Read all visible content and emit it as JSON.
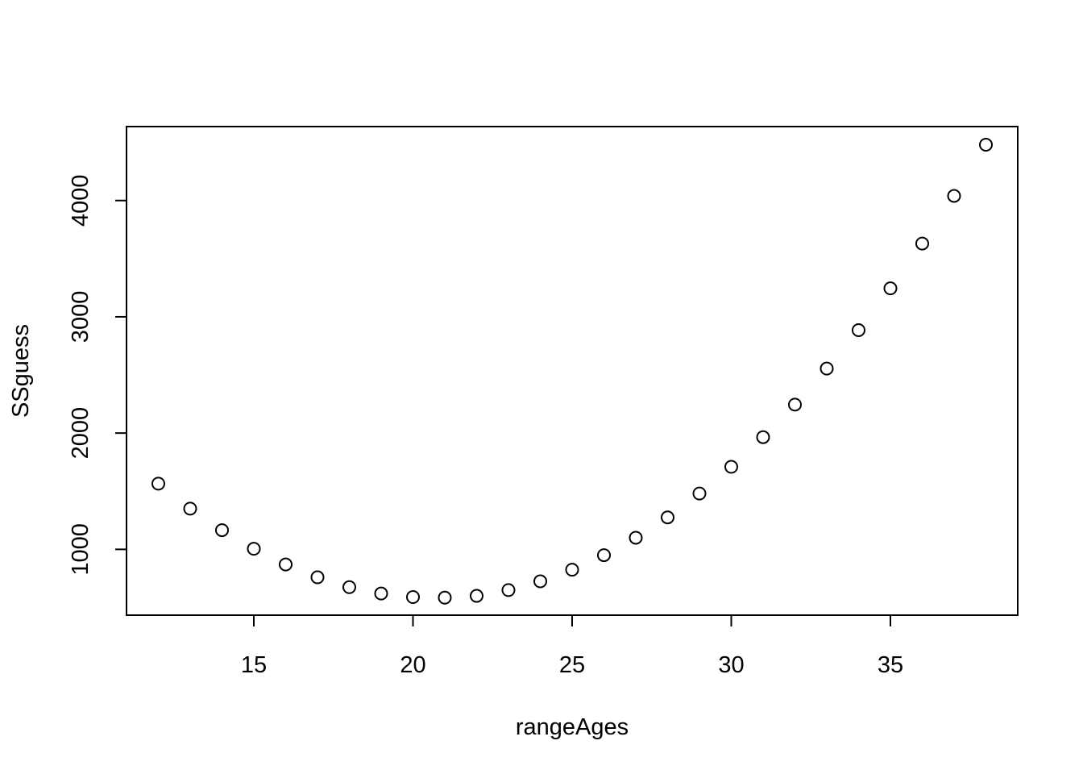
{
  "chart_data": {
    "type": "scatter",
    "title": "",
    "xlabel": "rangeAges",
    "ylabel": "SSguess",
    "x": [
      12,
      13,
      14,
      15,
      16,
      17,
      18,
      19,
      20,
      21,
      22,
      23,
      24,
      25,
      26,
      27,
      28,
      29,
      30,
      31,
      32,
      33,
      34,
      35,
      36,
      37,
      38
    ],
    "y": [
      1565,
      1350,
      1165,
      1005,
      870,
      760,
      675,
      620,
      590,
      585,
      600,
      650,
      725,
      825,
      950,
      1100,
      1275,
      1480,
      1710,
      1965,
      2245,
      2555,
      2885,
      3245,
      3630,
      4040,
      4480
    ],
    "xlim": [
      11.0,
      39.0
    ],
    "ylim": [
      434,
      4636
    ],
    "xticks": [
      15,
      20,
      25,
      30,
      35
    ],
    "xtick_labels": [
      "15",
      "20",
      "25",
      "30",
      "35"
    ],
    "yticks": [
      1000,
      2000,
      3000,
      4000
    ],
    "ytick_labels": [
      "1000",
      "2000",
      "3000",
      "4000"
    ],
    "marker": "open-circle",
    "grid": false,
    "legend": "none",
    "colors": {
      "background": "#ffffff",
      "foreground": "#000000"
    }
  }
}
